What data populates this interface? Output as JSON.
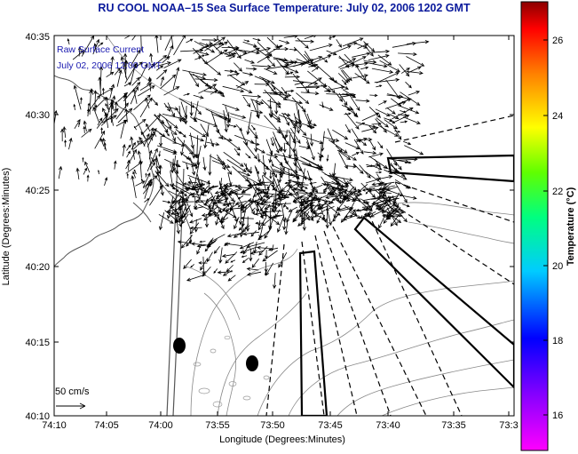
{
  "title": "RU COOL  NOAA–15  Sea Surface Temperature:  July 02, 2006 1202 GMT",
  "inset": {
    "line1": "Raw Surface Current",
    "line2": "July 02, 2006 12:00 GMT"
  },
  "scale_label": "50 cm/s",
  "axes": {
    "xlabel": "Longitude (Degrees:Minutes)",
    "ylabel": "Latitude (Degrees:Minutes)",
    "xticks": [
      "74:10",
      "74:05",
      "74:00",
      "73:55",
      "73:50",
      "73:45",
      "73:40",
      "73:35",
      "73:3"
    ],
    "yticks": [
      "40:35",
      "40:30",
      "40:25",
      "40:20",
      "40:15",
      "40:10"
    ]
  },
  "colorbar": {
    "label": "Temperature (°C)",
    "ticks": [
      "26",
      "24",
      "22",
      "20",
      "18",
      "16"
    ],
    "range": [
      15.2,
      27.5
    ]
  },
  "icons": {
    "station_markers": "filled-ellipse",
    "scale_arrow": "arrow-right"
  }
}
